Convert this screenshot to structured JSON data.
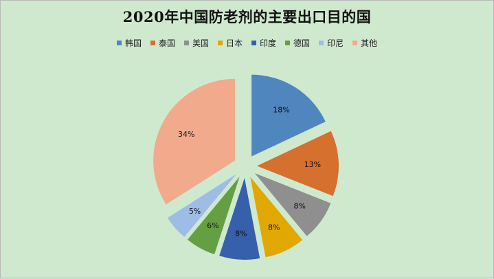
{
  "chart_data": {
    "type": "pie",
    "title": "2020年中国防老剂的主要出口目的国",
    "legend_position": "top",
    "labels": [
      "韩国",
      "泰国",
      "美国",
      "日本",
      "印度",
      "德国",
      "印尼",
      "其他"
    ],
    "values": [
      18,
      13,
      8,
      8,
      8,
      6,
      5,
      34
    ],
    "value_labels": [
      "18%",
      "13%",
      "8%",
      "8%",
      "8%",
      "6%",
      "5%",
      "34%"
    ],
    "colors": [
      "#4f86be",
      "#d5702f",
      "#8f8f8f",
      "#e0a800",
      "#3660ac",
      "#64a043",
      "#9ebde6",
      "#f1ab8c"
    ]
  }
}
